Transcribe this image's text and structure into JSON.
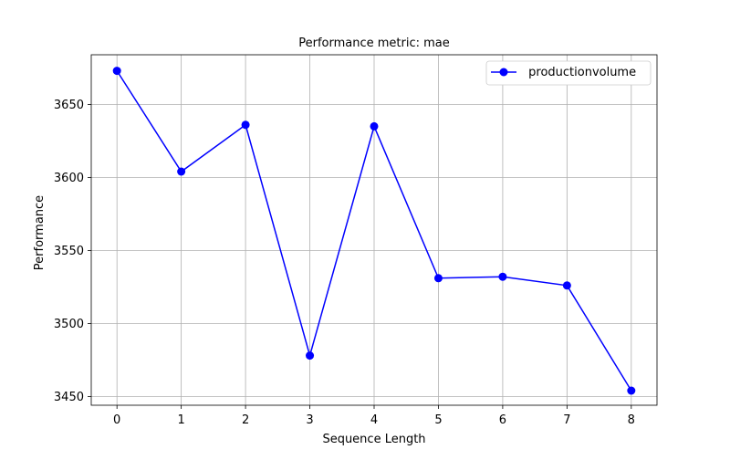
{
  "chart_data": {
    "type": "line",
    "title": "Performance metric: mae",
    "xlabel": "Sequence Length",
    "ylabel": "Performance",
    "x": [
      0,
      1,
      2,
      3,
      4,
      5,
      6,
      7,
      8
    ],
    "xlim": [
      -0.4,
      8.4
    ],
    "ylim": [
      3444,
      3684
    ],
    "x_ticks": [
      0,
      1,
      2,
      3,
      4,
      5,
      6,
      7,
      8
    ],
    "y_ticks": [
      3450,
      3500,
      3550,
      3600,
      3650
    ],
    "grid": true,
    "legend_position": "top-right",
    "series": [
      {
        "name": " productionvolume",
        "color": "#0000ff",
        "marker": "circle",
        "values": [
          3673,
          3604,
          3636,
          3478,
          3635,
          3531,
          3532,
          3526,
          3454
        ]
      }
    ]
  }
}
